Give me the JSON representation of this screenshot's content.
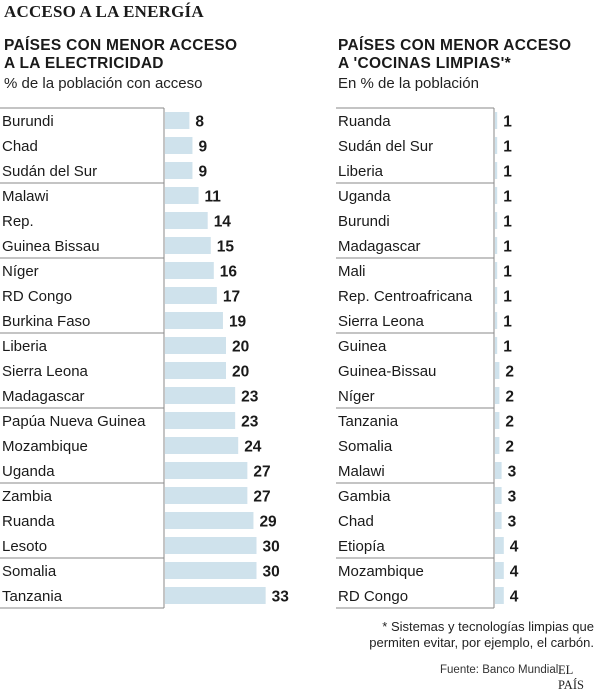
{
  "title": "ACCESO A LA ENERGÍA",
  "left_panel": {
    "title_line1": "PAÍSES CON MENOR ACCESO",
    "title_line2": "A LA ELECTRICIDAD",
    "subtitle": "% de la población con acceso"
  },
  "right_panel": {
    "title_line1": "PAÍSES CON MENOR ACCESO",
    "title_line2": "A 'COCINAS LIMPIAS'*",
    "subtitle": "En  % de la población"
  },
  "footnote_line1": "* Sistemas y tecnologías limpias que",
  "footnote_line2": "permiten evitar, por ejemplo, el carbón.",
  "source": "Fuente: Banco Mundial.",
  "brand": "EL PAÍS",
  "colors": {
    "bar": "#cfe2ec",
    "text": "#1a1a1a",
    "divider": "#8a8a8a"
  },
  "chart_data": [
    {
      "type": "bar",
      "orientation": "horizontal",
      "categories": [
        "Burundi",
        "Chad",
        "Sudán del Sur",
        "Malawi",
        "Rep.",
        "Guinea Bissau",
        "Níger",
        "RD Congo",
        "Burkina Faso",
        "Liberia",
        "Sierra Leona",
        "Madagascar",
        "Papúa Nueva Guinea",
        "Mozambique",
        "Uganda",
        "Zambia",
        "Ruanda",
        "Lesoto",
        "Somalia",
        "Tanzania"
      ],
      "values": [
        8,
        9,
        9,
        11,
        14,
        15,
        16,
        17,
        19,
        20,
        20,
        23,
        23,
        24,
        27,
        27,
        29,
        30,
        30,
        33
      ],
      "value_labels": [
        "8",
        "9",
        "9",
        "11",
        "14",
        "15",
        "16",
        "17",
        "19",
        "20",
        "20",
        "23",
        "23",
        "24",
        "27",
        "27",
        "29",
        "30",
        "30",
        "33"
      ],
      "title": "PAÍSES CON MENOR ACCESO A LA ELECTRICIDAD",
      "ylabel": "% de la población con acceso",
      "group_size": 3,
      "grid": false,
      "legend": "none"
    },
    {
      "type": "bar",
      "orientation": "horizontal",
      "categories": [
        "Ruanda",
        "Sudán del Sur",
        "Liberia",
        "Uganda",
        "Burundi",
        "Madagascar",
        "Mali",
        "Rep. Centroafricana",
        "Sierra Leona",
        "Guinea",
        "Guinea-Bissau",
        "Níger",
        "Tanzania",
        "Somalia",
        "Malawi",
        "Gambia",
        "Chad",
        "Etiopía",
        "Mozambique",
        "RD Congo"
      ],
      "values": [
        1,
        1,
        1,
        1,
        1,
        1,
        1,
        1,
        1,
        1,
        2,
        2,
        2,
        2,
        3,
        3,
        3,
        4,
        4,
        4
      ],
      "value_labels": [
        "1",
        "1",
        "1",
        "1",
        "1",
        "1",
        "1",
        "1",
        "1",
        "1",
        "2",
        "2",
        "2",
        "2",
        "3",
        "3",
        "3",
        "4",
        "4",
        "4"
      ],
      "title": "PAÍSES CON MENOR ACCESO A 'COCINAS LIMPIAS'*",
      "ylabel": "En  % de la población",
      "group_size": 3,
      "grid": false,
      "legend": "none"
    }
  ]
}
